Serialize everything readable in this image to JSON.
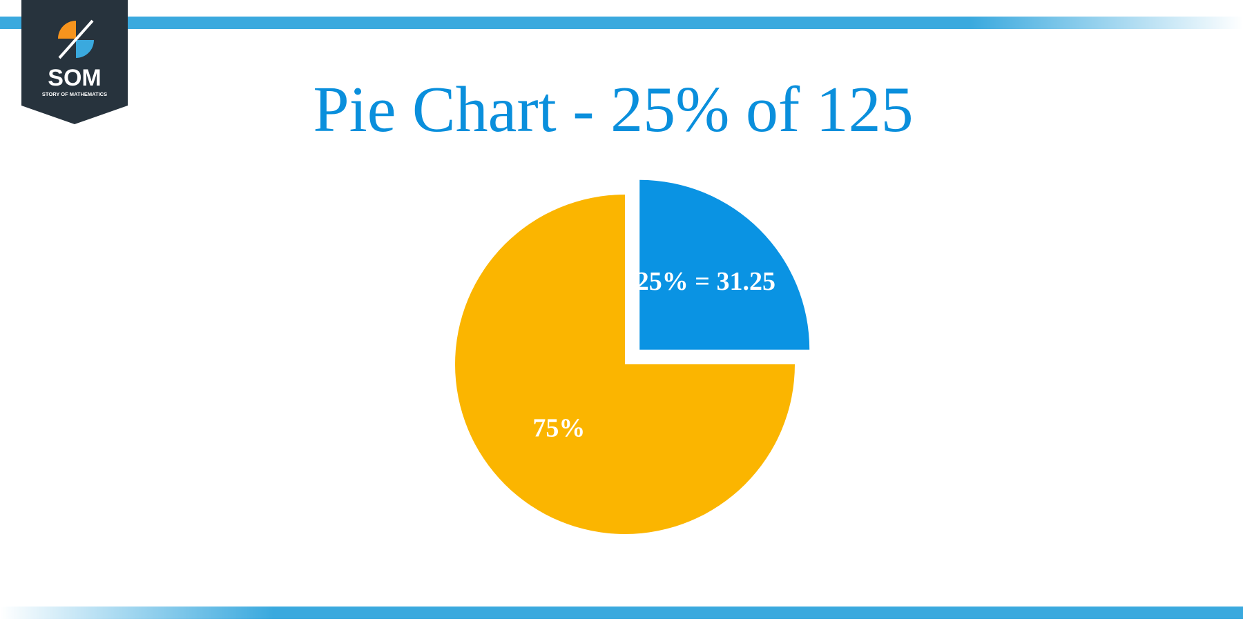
{
  "logo": {
    "text": "SOM",
    "tagline": "STORY OF MATHEMATICS"
  },
  "chart_data": {
    "type": "pie",
    "title": "Pie Chart - 25% of 125",
    "values": [
      25,
      75
    ],
    "value_labels": [
      "25% = 31.25",
      "75%"
    ],
    "colors": [
      "#0a93e3",
      "#fbb500"
    ]
  }
}
